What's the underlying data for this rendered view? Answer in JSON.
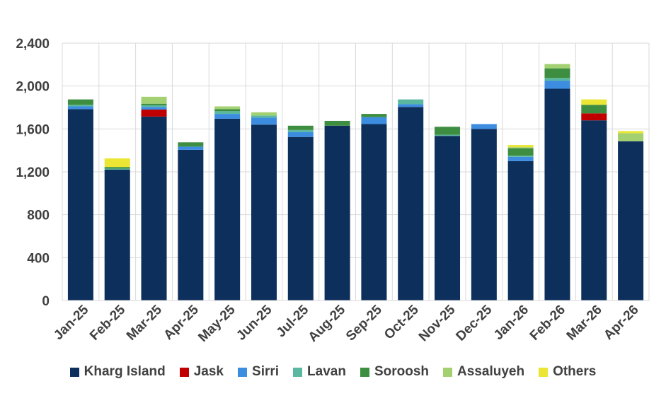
{
  "chart_data": {
    "type": "bar",
    "stacked": true,
    "title": "",
    "xlabel": "",
    "ylabel": "",
    "ylim": [
      0,
      2400
    ],
    "yticks": [
      0,
      400,
      800,
      1200,
      1600,
      2000,
      2400
    ],
    "ytick_labels": [
      "0",
      "400",
      "800",
      "1,200",
      "1,600",
      "2,000",
      "2,400"
    ],
    "grid": true,
    "legend_position": "bottom",
    "categories": [
      "Jan-25",
      "Feb-25",
      "Mar-25",
      "Apr-25",
      "May-25",
      "Jun-25",
      "Jul-25",
      "Aug-25",
      "Sep-25",
      "Oct-25",
      "Nov-25",
      "Dec-25",
      "Jan-26",
      "Feb-26",
      "Mar-26",
      "Apr-26"
    ],
    "series": [
      {
        "name": "Kharg Island",
        "color": "#0d2f5c",
        "values": [
          1785,
          1220,
          1715,
          1405,
          1695,
          1640,
          1525,
          1630,
          1645,
          1805,
          1535,
          1600,
          1300,
          1975,
          1680,
          1485
        ]
      },
      {
        "name": "Jask",
        "color": "#c00000",
        "values": [
          0,
          0,
          65,
          0,
          0,
          0,
          0,
          0,
          0,
          0,
          0,
          0,
          0,
          0,
          65,
          0
        ]
      },
      {
        "name": "Sirri",
        "color": "#3c8de0",
        "values": [
          25,
          0,
          25,
          30,
          45,
          65,
          45,
          0,
          65,
          25,
          0,
          45,
          40,
          75,
          0,
          0
        ]
      },
      {
        "name": "Lavan",
        "color": "#5ab8a0",
        "values": [
          15,
          10,
          15,
          0,
          25,
          20,
          20,
          0,
          0,
          45,
          10,
          0,
          10,
          25,
          0,
          0
        ]
      },
      {
        "name": "Soroosh",
        "color": "#3e8e41",
        "values": [
          50,
          15,
          15,
          40,
          20,
          0,
          40,
          45,
          30,
          0,
          75,
          0,
          70,
          90,
          80,
          0
        ]
      },
      {
        "name": "Assaluyeh",
        "color": "#a3d172",
        "values": [
          0,
          0,
          65,
          0,
          25,
          30,
          0,
          0,
          0,
          0,
          0,
          0,
          10,
          40,
          0,
          75
        ]
      },
      {
        "name": "Others",
        "color": "#ebe534",
        "values": [
          0,
          80,
          0,
          0,
          0,
          0,
          0,
          0,
          0,
          0,
          0,
          0,
          20,
          0,
          50,
          20
        ]
      }
    ]
  }
}
